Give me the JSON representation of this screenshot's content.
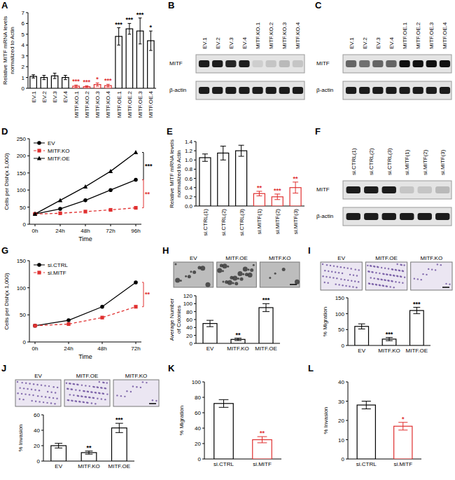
{
  "chart_data": [
    {
      "type": "bar",
      "title": "A",
      "y_label": "Relative MITF mRNA levels normalized to Actin",
      "categories": [
        "EV.1",
        "EV.2",
        "EV.3",
        "EV.4",
        "MITF.KO.1",
        "MITF.KO.2",
        "MITF.KO.3",
        "MITF.KO.4",
        "MITF.OE.1",
        "MITF.OE.2",
        "MITF.OE.3",
        "MITF.OE.4"
      ],
      "values": [
        1.1,
        1.0,
        1.15,
        1.0,
        0.2,
        0.15,
        0.35,
        0.25,
        4.8,
        5.5,
        5.3,
        4.4
      ],
      "errors": [
        0.15,
        0.2,
        0.25,
        0.2,
        0.1,
        0.08,
        0.15,
        0.12,
        0.8,
        0.5,
        1.2,
        0.9
      ],
      "annotations": [
        null,
        null,
        null,
        null,
        "***",
        "***",
        "*",
        "***",
        "***",
        "***",
        "***",
        "*"
      ],
      "colors": [
        "#000000",
        "#000000",
        "#000000",
        "#000000",
        "#e03030",
        "#e03030",
        "#e03030",
        "#e03030",
        "#000000",
        "#000000",
        "#000000",
        "#000000"
      ],
      "ylim": [
        0,
        7
      ],
      "yticks": [
        0,
        1,
        2,
        3,
        4,
        5,
        6,
        7
      ]
    },
    {
      "type": "line",
      "title": "D",
      "x_label": "Time",
      "y_label": "Cells per Dish(x 1,000)",
      "categories": [
        "0h",
        "24h",
        "48h",
        "72h",
        "96h"
      ],
      "series": [
        {
          "name": "EV",
          "color": "#000000",
          "marker": "circle",
          "line_style": "solid",
          "values": [
            30,
            45,
            70,
            100,
            130
          ]
        },
        {
          "name": "MITF.KO",
          "color": "#e03030",
          "marker": "square",
          "line_style": "dashed",
          "values": [
            30,
            32,
            37,
            42,
            48
          ]
        },
        {
          "name": "MITF.OE",
          "color": "#000000",
          "marker": "triangle",
          "line_style": "solid",
          "values": [
            30,
            70,
            110,
            155,
            210
          ]
        }
      ],
      "annotations": [
        "***",
        "**"
      ],
      "ylim": [
        0,
        250
      ],
      "yticks": [
        0,
        50,
        100,
        150,
        200,
        250
      ],
      "legend": "top-left"
    },
    {
      "type": "bar",
      "title": "E",
      "y_label": "Relative MITF mRNA levels normalized to Actin",
      "categories": [
        "si.CTRL(1)",
        "si.CTRL(2)",
        "si.CTRL(3)",
        "si.MITF(1)",
        "si.MITF(2)",
        "si.MITF(3)"
      ],
      "values": [
        1.05,
        1.15,
        1.2,
        0.27,
        0.2,
        0.4
      ],
      "errors": [
        0.08,
        0.15,
        0.12,
        0.05,
        0.06,
        0.12
      ],
      "annotations": [
        null,
        null,
        null,
        "**",
        "***",
        "**"
      ],
      "colors": [
        "#000000",
        "#000000",
        "#000000",
        "#e03030",
        "#e03030",
        "#e03030"
      ],
      "ylim": [
        0,
        1.4
      ],
      "yticks": [
        {
          "value": 0,
          "label": "0.0"
        },
        0.2,
        0.4,
        0.6,
        0.8,
        {
          "value": 1,
          "label": "1.0"
        },
        1.2,
        1.4
      ]
    },
    {
      "type": "line",
      "title": "G",
      "x_label": "Time",
      "y_label": "Cells per Dish(x 1,000)",
      "categories": [
        "0h",
        "24h",
        "48h",
        "72h"
      ],
      "series": [
        {
          "name": "si.CTRL",
          "color": "#000000",
          "marker": "circle",
          "line_style": "solid",
          "values": [
            30,
            40,
            65,
            110
          ]
        },
        {
          "name": "si.MITF",
          "color": "#e03030",
          "marker": "square",
          "line_style": "dashed",
          "values": [
            30,
            33,
            45,
            65
          ]
        }
      ],
      "annotations": [
        "**"
      ],
      "ylim": [
        0,
        150
      ],
      "yticks": [
        0,
        50,
        100,
        150
      ],
      "legend": "top-left"
    },
    {
      "type": "bar",
      "title": "H",
      "y_label": "Average Number of Colonies",
      "categories": [
        "EV",
        "MITF.KO",
        "MITF.OE"
      ],
      "values": [
        50,
        10,
        90
      ],
      "errors": [
        8,
        3,
        10
      ],
      "annotations": [
        null,
        "**",
        "***"
      ],
      "colors": [
        "#000000",
        "#000000",
        "#000000"
      ],
      "ylim": [
        0,
        120
      ],
      "yticks": [
        0,
        20,
        40,
        60,
        80,
        100,
        120
      ]
    },
    {
      "type": "bar",
      "title": "I",
      "y_label": "% Migration",
      "categories": [
        "EV",
        "MITF.KO",
        "MITF.OE"
      ],
      "values": [
        60,
        20,
        110
      ],
      "errors": [
        8,
        5,
        10
      ],
      "annotations": [
        null,
        "***",
        "***"
      ],
      "colors": [
        "#000000",
        "#000000",
        "#000000"
      ],
      "ylim": [
        0,
        150
      ],
      "yticks": [
        0,
        50,
        100,
        150
      ]
    },
    {
      "type": "bar",
      "title": "J",
      "y_label": "% Invasion",
      "categories": [
        "EV",
        "MITF.KO",
        "MITF.OE"
      ],
      "values": [
        20,
        11,
        43
      ],
      "errors": [
        3,
        2,
        6
      ],
      "annotations": [
        null,
        "**",
        "***"
      ],
      "colors": [
        "#000000",
        "#000000",
        "#000000"
      ],
      "ylim": [
        0,
        60
      ],
      "yticks": [
        0,
        20,
        40,
        60
      ]
    },
    {
      "type": "bar",
      "title": "K",
      "y_label": "% Migration",
      "categories": [
        "si.CTRL",
        "si.MITF"
      ],
      "values": [
        72,
        25
      ],
      "errors": [
        5,
        4
      ],
      "annotations": [
        null,
        "**"
      ],
      "colors": [
        "#000000",
        "#e03030"
      ],
      "ylim": [
        0,
        100
      ],
      "yticks": [
        0,
        20,
        40,
        60,
        80,
        100
      ]
    },
    {
      "type": "bar",
      "title": "L",
      "y_label": "% Invasion",
      "categories": [
        "si.CTRL",
        "si.MITF"
      ],
      "values": [
        28,
        17
      ],
      "errors": [
        2,
        2
      ],
      "annotations": [
        null,
        "*"
      ],
      "colors": [
        "#000000",
        "#e03030"
      ],
      "ylim": [
        0,
        40
      ],
      "yticks": [
        0,
        10,
        20,
        30,
        40
      ]
    }
  ],
  "blots": [
    {
      "title": "B",
      "lanes": [
        "EV.1",
        "EV.2",
        "EV.3",
        "EV.4",
        "MITF.KO.1",
        "MITF.KO.2",
        "MITF.KO.3",
        "MITF.KO.4"
      ],
      "rows": [
        {
          "label": "MITF",
          "bands": [
            0.95,
            0.95,
            0.9,
            0.95,
            0.1,
            0.15,
            0.2,
            0.15
          ]
        },
        {
          "label": "β-actin",
          "bands": [
            0.95,
            0.95,
            0.95,
            0.95,
            0.95,
            0.95,
            0.95,
            0.95
          ]
        }
      ]
    },
    {
      "title": "C",
      "lanes": [
        "EV.1",
        "EV.2",
        "EV.3",
        "EV.4",
        "MITF.OE.1",
        "MITF.OE.2",
        "MITF.OE.3",
        "MITF.OE.4"
      ],
      "rows": [
        {
          "label": "MITF",
          "bands": [
            0.6,
            0.55,
            0.6,
            0.6,
            1,
            1,
            1,
            1
          ]
        },
        {
          "label": "β-actin",
          "bands": [
            0.95,
            0.95,
            0.95,
            0.95,
            0.95,
            0.95,
            0.95,
            0.95
          ]
        }
      ]
    },
    {
      "title": "F",
      "lanes": [
        "si.CTRL(1)",
        "si.CTRL(2)",
        "si.CTRL(3)",
        "si.MITF(1)",
        "si.MITF(2)",
        "si.MITF(3)"
      ],
      "rows": [
        {
          "label": "MITF",
          "bands": [
            0.95,
            0.95,
            0.95,
            0.15,
            0.15,
            0.2
          ]
        },
        {
          "label": "β-actin",
          "bands": [
            0.95,
            0.95,
            0.95,
            0.95,
            0.95,
            0.95
          ]
        }
      ]
    }
  ],
  "images": [
    {
      "labels": [
        "EV",
        "MITF.OE",
        "MITF.KO"
      ]
    },
    {
      "labels": [
        "EV",
        "MITF.OE",
        "MITF.KO"
      ]
    },
    {
      "labels": [
        "EV",
        "MITF.OE",
        "MITF.KO"
      ]
    }
  ]
}
